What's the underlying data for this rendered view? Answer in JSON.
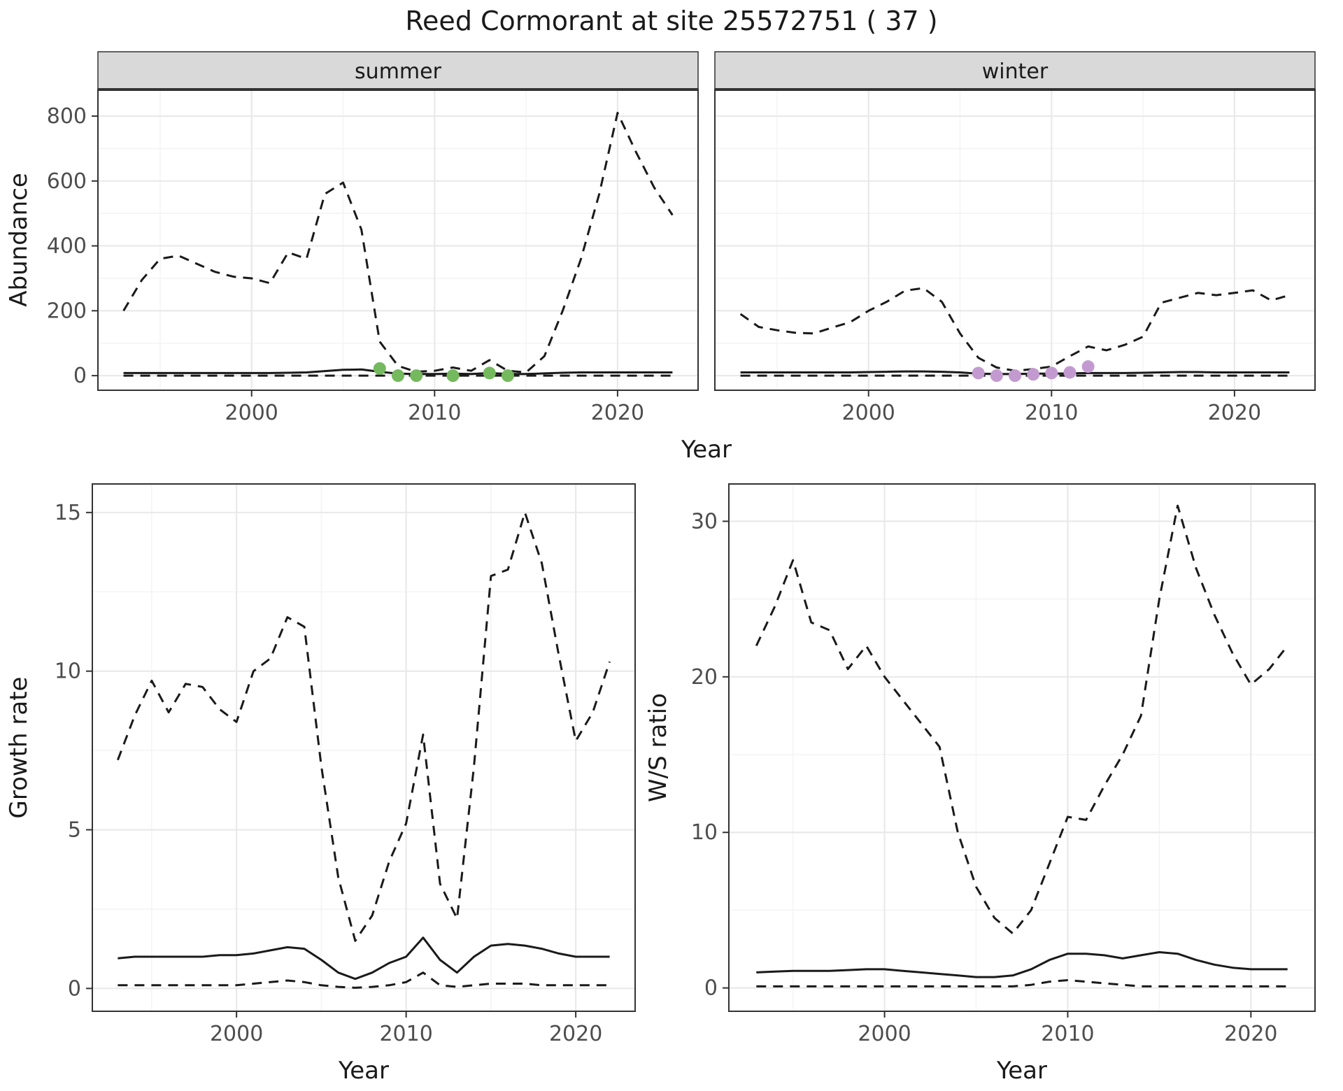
{
  "title": "Reed Cormorant at site 25572751 ( 37 )",
  "colors": {
    "line": "#1a1a1a",
    "summer_points": "#74b95d",
    "winter_points": "#c39ad0",
    "strip_bg": "#d9d9d9",
    "strip_border": "#333333",
    "panel_border": "#333333",
    "grid_major": "#e9e9e9",
    "grid_minor": "#f4f4f4",
    "axis_text": "#4d4d4d",
    "axis_title": "#1a1a1a",
    "tick_mark": "#333333"
  },
  "chart_data": [
    {
      "id": "abundance-summer",
      "type": "line",
      "facet": "summer",
      "xlabel": "Year",
      "ylabel": "Abundance",
      "xlim": [
        1991.6,
        2024.4
      ],
      "ylim": [
        -45,
        882
      ],
      "xticks": [
        2000,
        2010,
        2020
      ],
      "xticks_minor": [
        1995,
        2005,
        2015
      ],
      "yticks": [
        0,
        200,
        400,
        600,
        800
      ],
      "yticks_minor": [
        100,
        300,
        500,
        700
      ],
      "x": [
        1993,
        1994,
        1995,
        1996,
        1997,
        1998,
        1999,
        2000,
        2001,
        2002,
        2003,
        2004,
        2005,
        2006,
        2007,
        2008,
        2009,
        2010,
        2011,
        2012,
        2013,
        2014,
        2015,
        2016,
        2017,
        2018,
        2019,
        2020,
        2021,
        2022,
        2023
      ],
      "series": [
        {
          "name": "upper_ci",
          "style": "dashed",
          "values": [
            200,
            295,
            360,
            370,
            345,
            320,
            305,
            300,
            285,
            380,
            360,
            560,
            595,
            450,
            105,
            30,
            12,
            15,
            25,
            15,
            48,
            15,
            10,
            60,
            200,
            360,
            560,
            810,
            690,
            580,
            495
          ]
        },
        {
          "name": "median",
          "style": "solid",
          "values": [
            8,
            8,
            8,
            8,
            8,
            8,
            8,
            8,
            8,
            9,
            10,
            14,
            18,
            19,
            12,
            6,
            5,
            5,
            6,
            5,
            8,
            5,
            5,
            7,
            9,
            10,
            10,
            10,
            10,
            10,
            10
          ]
        },
        {
          "name": "lower_ci",
          "style": "dashed",
          "values": [
            0,
            0,
            0,
            0,
            0,
            0,
            0,
            0,
            0,
            0,
            0,
            0,
            0,
            0,
            0,
            0,
            0,
            0,
            0,
            0,
            0,
            0,
            0,
            0,
            0,
            0,
            0,
            0,
            0,
            0,
            0
          ]
        }
      ],
      "points": {
        "name": "observed-counts-summer",
        "color_key": "summer_points",
        "x": [
          2007,
          2008,
          2009,
          2011,
          2013,
          2014
        ],
        "y": [
          22,
          0,
          0,
          0,
          8,
          0
        ]
      }
    },
    {
      "id": "abundance-winter",
      "type": "line",
      "facet": "winter",
      "xlabel": "Year",
      "ylabel": "Abundance",
      "xlim": [
        1991.6,
        2024.4
      ],
      "ylim": [
        -45,
        882
      ],
      "xticks": [
        2000,
        2010,
        2020
      ],
      "xticks_minor": [
        1995,
        2005,
        2015
      ],
      "yticks": [
        0,
        200,
        400,
        600,
        800
      ],
      "yticks_minor": [
        100,
        300,
        500,
        700
      ],
      "x": [
        1993,
        1994,
        1995,
        1996,
        1997,
        1998,
        1999,
        2000,
        2001,
        2002,
        2003,
        2004,
        2005,
        2006,
        2007,
        2008,
        2009,
        2010,
        2011,
        2012,
        2013,
        2014,
        2015,
        2016,
        2017,
        2018,
        2019,
        2020,
        2021,
        2022,
        2023
      ],
      "series": [
        {
          "name": "upper_ci",
          "style": "dashed",
          "values": [
            190,
            150,
            140,
            132,
            130,
            148,
            165,
            200,
            228,
            262,
            270,
            228,
            130,
            55,
            25,
            15,
            20,
            28,
            60,
            90,
            78,
            95,
            120,
            225,
            240,
            255,
            248,
            255,
            263,
            232,
            248
          ]
        },
        {
          "name": "median",
          "style": "solid",
          "values": [
            10,
            10,
            10,
            10,
            10,
            10,
            10,
            11,
            12,
            13,
            13,
            12,
            10,
            6,
            5,
            5,
            6,
            6,
            7,
            8,
            8,
            8,
            9,
            10,
            11,
            11,
            10,
            10,
            10,
            10,
            10
          ]
        },
        {
          "name": "lower_ci",
          "style": "dashed",
          "values": [
            0,
            0,
            0,
            0,
            0,
            0,
            0,
            0,
            0,
            0,
            0,
            0,
            0,
            0,
            0,
            0,
            0,
            0,
            0,
            0,
            0,
            0,
            0,
            0,
            0,
            0,
            0,
            0,
            0,
            0,
            0
          ]
        }
      ],
      "points": {
        "name": "observed-counts-winter",
        "color_key": "winter_points",
        "x": [
          2006,
          2007,
          2008,
          2009,
          2010,
          2011,
          2012
        ],
        "y": [
          8,
          0,
          0,
          4,
          8,
          10,
          28
        ]
      }
    },
    {
      "id": "growth-rate",
      "type": "line",
      "facet": null,
      "xlabel": "Year",
      "ylabel": "Growth rate",
      "xlim": [
        1991.5,
        2023.5
      ],
      "ylim": [
        -0.72,
        15.9
      ],
      "xticks": [
        2000,
        2010,
        2020
      ],
      "xticks_minor": [
        1995,
        2005,
        2015
      ],
      "yticks": [
        0,
        5,
        10,
        15
      ],
      "yticks_minor": [
        2.5,
        7.5,
        12.5
      ],
      "x": [
        1993,
        1994,
        1995,
        1996,
        1997,
        1998,
        1999,
        2000,
        2001,
        2002,
        2003,
        2004,
        2005,
        2006,
        2007,
        2008,
        2009,
        2010,
        2011,
        2012,
        2013,
        2014,
        2015,
        2016,
        2017,
        2018,
        2019,
        2020,
        2021,
        2022
      ],
      "series": [
        {
          "name": "upper_ci",
          "style": "dashed",
          "values": [
            7.2,
            8.6,
            9.7,
            8.7,
            9.6,
            9.5,
            8.8,
            8.4,
            10.0,
            10.4,
            11.7,
            11.4,
            7.0,
            3.5,
            1.5,
            2.3,
            4.0,
            5.2,
            8.0,
            3.3,
            2.2,
            7.0,
            13.0,
            13.2,
            15.0,
            13.4,
            10.5,
            7.8,
            8.7,
            10.3
          ]
        },
        {
          "name": "median",
          "style": "solid",
          "values": [
            0.95,
            1.0,
            1.0,
            1.0,
            1.0,
            1.0,
            1.05,
            1.05,
            1.1,
            1.2,
            1.3,
            1.25,
            0.9,
            0.5,
            0.3,
            0.5,
            0.8,
            1.0,
            1.6,
            0.9,
            0.5,
            1.0,
            1.35,
            1.4,
            1.35,
            1.25,
            1.1,
            1.0,
            1.0,
            1.0
          ]
        },
        {
          "name": "lower_ci",
          "style": "dashed",
          "values": [
            0.1,
            0.1,
            0.1,
            0.1,
            0.1,
            0.1,
            0.1,
            0.1,
            0.15,
            0.2,
            0.25,
            0.2,
            0.1,
            0.05,
            0.02,
            0.05,
            0.1,
            0.2,
            0.5,
            0.1,
            0.05,
            0.1,
            0.15,
            0.15,
            0.15,
            0.1,
            0.1,
            0.1,
            0.1,
            0.1
          ]
        }
      ],
      "points": null
    },
    {
      "id": "ws-ratio",
      "type": "line",
      "facet": null,
      "xlabel": "Year",
      "ylabel": "W/S ratio",
      "xlim": [
        1991.5,
        2023.5
      ],
      "ylim": [
        -1.5,
        32.4
      ],
      "xticks": [
        2000,
        2010,
        2020
      ],
      "xticks_minor": [
        1995,
        2005,
        2015
      ],
      "yticks": [
        0,
        10,
        20,
        30
      ],
      "yticks_minor": [
        5,
        15,
        25
      ],
      "x": [
        1993,
        1994,
        1995,
        1996,
        1997,
        1998,
        1999,
        2000,
        2001,
        2002,
        2003,
        2004,
        2005,
        2006,
        2007,
        2008,
        2009,
        2010,
        2011,
        2012,
        2013,
        2014,
        2015,
        2016,
        2017,
        2018,
        2019,
        2020,
        2021,
        2022
      ],
      "series": [
        {
          "name": "upper_ci",
          "style": "dashed",
          "values": [
            22.0,
            24.5,
            27.5,
            23.5,
            23.0,
            20.5,
            22.0,
            20.0,
            18.5,
            17.0,
            15.5,
            10.0,
            6.5,
            4.5,
            3.5,
            5.0,
            8.0,
            11.0,
            10.8,
            13.0,
            15.0,
            17.5,
            25.0,
            31.0,
            27.0,
            24.0,
            21.5,
            19.5,
            20.5,
            22.0
          ]
        },
        {
          "name": "median",
          "style": "solid",
          "values": [
            1.0,
            1.05,
            1.1,
            1.1,
            1.1,
            1.15,
            1.2,
            1.2,
            1.1,
            1.0,
            0.9,
            0.8,
            0.7,
            0.7,
            0.8,
            1.2,
            1.8,
            2.2,
            2.2,
            2.1,
            1.9,
            2.1,
            2.3,
            2.2,
            1.8,
            1.5,
            1.3,
            1.2,
            1.2,
            1.2
          ]
        },
        {
          "name": "lower_ci",
          "style": "dashed",
          "values": [
            0.1,
            0.1,
            0.1,
            0.1,
            0.1,
            0.1,
            0.1,
            0.1,
            0.1,
            0.1,
            0.1,
            0.1,
            0.1,
            0.1,
            0.1,
            0.2,
            0.4,
            0.5,
            0.4,
            0.3,
            0.2,
            0.1,
            0.1,
            0.1,
            0.1,
            0.1,
            0.1,
            0.1,
            0.1,
            0.1
          ]
        }
      ],
      "points": null
    }
  ]
}
